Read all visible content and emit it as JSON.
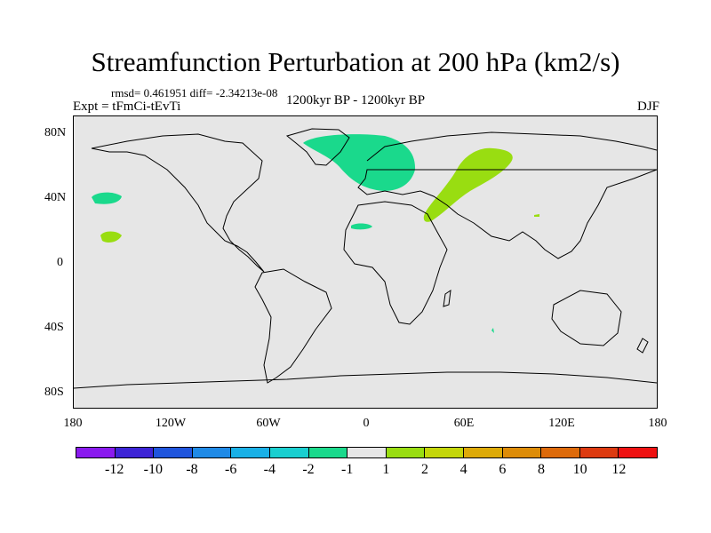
{
  "title": "Streamfunction Perturbation at 200 hPa (km2/s)",
  "stats_line": "rmsd= 0.461951 diff= -2.34213e-08",
  "experiment": "Expt = tFmCi-tEvTi",
  "period": "1200kyr BP - 1200kyr BP",
  "season": "DJF",
  "map": {
    "projection": "cylindrical equidistant",
    "lon_range": [
      -180,
      180
    ],
    "lat_range": [
      -90,
      90
    ],
    "background_color": "#e6e6e6",
    "y_ticks": [
      "80N",
      "40N",
      "0",
      "40S",
      "80S"
    ],
    "x_ticks": [
      "180",
      "120W",
      "60W",
      "0",
      "60E",
      "120E",
      "180"
    ],
    "shaded_regions": [
      {
        "name": "north-atlantic-europe",
        "level": "-2 to -1",
        "color": "#1ad98c"
      },
      {
        "name": "north-pacific",
        "level": "-2 to -1",
        "color": "#1ad98c"
      },
      {
        "name": "north-africa",
        "level": "-2 to -1",
        "color": "#1ad98c"
      },
      {
        "name": "middle-east-central-asia",
        "level": "1 to 2",
        "color": "#99dd11"
      },
      {
        "name": "central-pacific",
        "level": "1 to 2",
        "color": "#99dd11"
      },
      {
        "name": "east-asia",
        "level": "1 to 2",
        "color": "#99dd11"
      },
      {
        "name": "indian-ocean",
        "level": "-2 to -1",
        "color": "#1ad98c"
      }
    ]
  },
  "colorbar": {
    "colors": [
      "#8a1aee",
      "#3d24d6",
      "#1f55dd",
      "#1f8ae6",
      "#19b0e6",
      "#19cfd0",
      "#1ad98c",
      "#e6e6e6",
      "#99dd11",
      "#c4d60a",
      "#ddaa08",
      "#dd8c08",
      "#dd6a0a",
      "#dd3a10",
      "#ee1111"
    ],
    "labels": [
      "-12",
      "-10",
      "-8",
      "-6",
      "-4",
      "-2",
      "-1",
      "1",
      "2",
      "4",
      "6",
      "8",
      "10",
      "12"
    ]
  }
}
